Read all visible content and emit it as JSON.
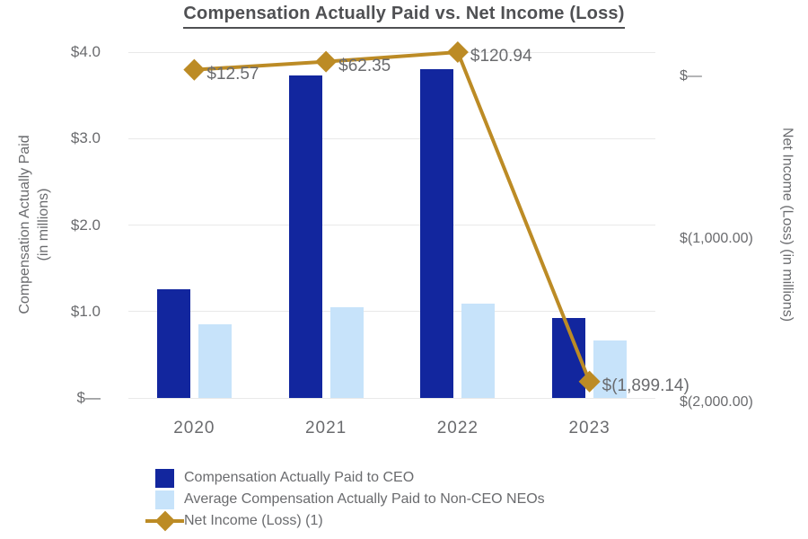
{
  "title": "Compensation Actually Paid vs. Net Income (Loss)",
  "chart_data": {
    "type": "combo-bar-line",
    "grid": true,
    "legend_position": "bottom-left",
    "categories": [
      "2020",
      "2021",
      "2022",
      "2023"
    ],
    "bar_series": [
      {
        "name": "Compensation Actually Paid to CEO",
        "axis": "left",
        "color": "#12269e",
        "values": [
          1.26,
          3.73,
          3.8,
          0.92
        ]
      },
      {
        "name": "Average Compensation Actually Paid to Non-CEO NEOs",
        "axis": "left",
        "color": "#c7e3fa",
        "values": [
          0.85,
          1.05,
          1.09,
          0.66
        ]
      }
    ],
    "line_series": [
      {
        "name": "Net Income (Loss) (1)",
        "axis": "right",
        "color": "#bc8b25",
        "marker": "diamond",
        "values": [
          12.57,
          62.35,
          120.94,
          -1899.14
        ],
        "point_labels": [
          "$12.57",
          "$62.35",
          "$120.94",
          "$(1,899.14)"
        ]
      }
    ],
    "left_axis": {
      "title_line1": "Compensation Actually Paid",
      "title_line2": "(in millions)",
      "ylim": [
        0,
        4
      ],
      "ticks": [
        {
          "v": 4,
          "label": "$4.0"
        },
        {
          "v": 3,
          "label": "$3.0"
        },
        {
          "v": 2,
          "label": "$2.0"
        },
        {
          "v": 1,
          "label": "$1.0"
        },
        {
          "v": 0,
          "label": "$—"
        }
      ]
    },
    "right_axis": {
      "title": "Net Income (Loss) (in millions)",
      "ylim": [
        -2000,
        121
      ],
      "ticks": [
        {
          "v": 0,
          "label": "$—"
        },
        {
          "v": -1000,
          "label": "$(1,000.00)"
        },
        {
          "v": -2000,
          "label": "$(2,000.00)"
        }
      ]
    },
    "colors": {
      "grid": "#e9e9e9",
      "text": "#6a6b6e",
      "title": "#4f5053"
    }
  }
}
